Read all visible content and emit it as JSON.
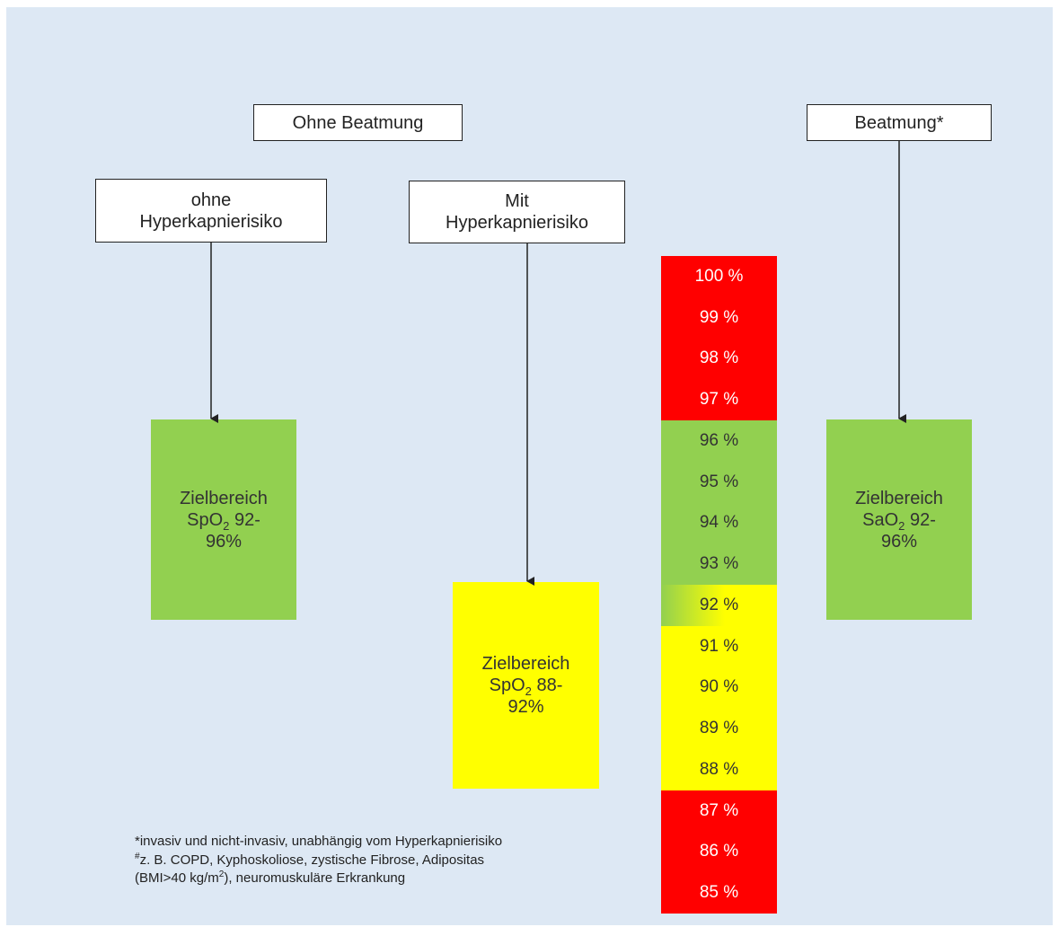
{
  "headers": {
    "ohne_beatmung": "Ohne Beatmung",
    "beatmung": "Beatmung*"
  },
  "subheaders": {
    "ohne_hyperkapnie": [
      "ohne",
      "Hyperkapnierisiko"
    ],
    "mit_hyperkapnie": [
      "Mit",
      "Hyperkapnierisiko"
    ]
  },
  "targets": {
    "left": {
      "prefix": "Zielbereich",
      "parameter": "Sp",
      "subscript": "O",
      "sub_digit": "2",
      "range_start": " 92-",
      "range_end": "96%"
    },
    "middle": {
      "prefix": "Zielbereich",
      "parameter": "Sp",
      "subscript": "O",
      "sub_digit": "2",
      "range_start": " 88-",
      "range_end": "92%"
    },
    "right": {
      "prefix": "Zielbereich",
      "parameter": "Sa",
      "subscript": "O",
      "sub_digit": "2",
      "range_start": " 92-",
      "range_end": "96%"
    }
  },
  "scale": {
    "ticks": [
      "100 %",
      "99 %",
      "98 %",
      "97 %",
      "96 %",
      "95 %",
      "94 %",
      "93 %",
      "92 %",
      "91 %",
      "90 %",
      "89 %",
      "88 %",
      "87 %",
      "86 %",
      "85 %"
    ],
    "bands": [
      {
        "from": 100,
        "to": 97,
        "color": "#ff0000",
        "text_color": "#ffffff"
      },
      {
        "from": 96,
        "to": 93,
        "color": "#92d050",
        "text_color": "#333333"
      },
      {
        "from": 92,
        "to": 92,
        "color": "gradient",
        "text_color": "#333333"
      },
      {
        "from": 91,
        "to": 88,
        "color": "#ffff00",
        "text_color": "#333333"
      },
      {
        "from": 87,
        "to": 85,
        "color": "#ff0000",
        "text_color": "#ffffff"
      }
    ]
  },
  "colors": {
    "green": "#92d050",
    "yellow": "#ffff00",
    "red": "#ff0000",
    "background": "#dde8f4"
  },
  "footnote": {
    "line1": "*invasiv und nicht-invasiv,  unabhängig vom Hyperkapnierisiko",
    "line2_mark": "#",
    "line2": "z. B.  COPD, Kyphoskoliose, zystische Fibrose, Adipositas",
    "line3_a": "(BMI>40 kg/m",
    "line3_sup": "2",
    "line3_b": "), neuromuskuläre  Erkrankung"
  }
}
